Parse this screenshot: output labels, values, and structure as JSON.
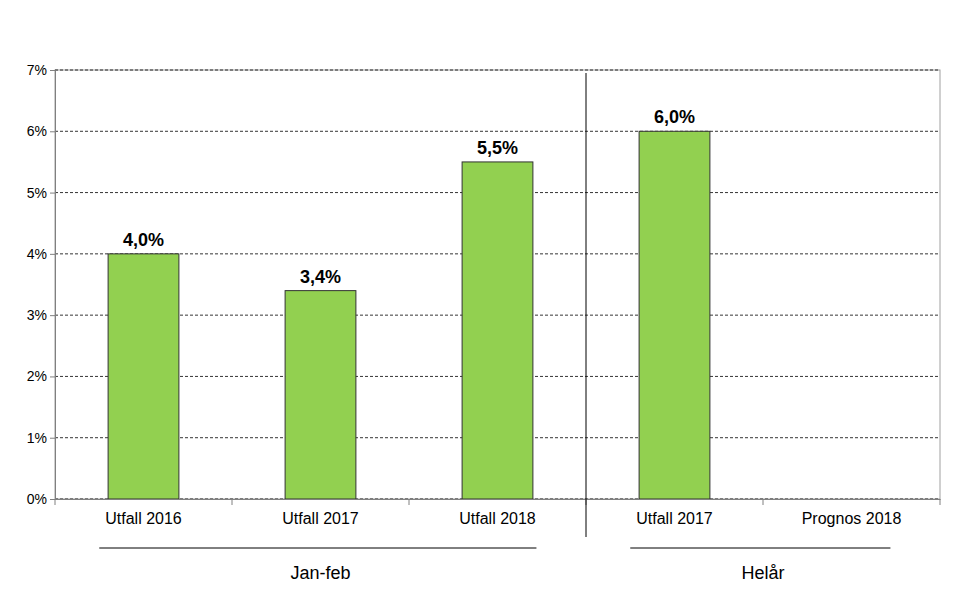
{
  "chart_data": {
    "type": "bar",
    "categories": [
      "Utfall 2016",
      "Utfall 2017",
      "Utfall 2018",
      "Utfall 2017",
      "Prognos 2018"
    ],
    "values": [
      4.0,
      3.4,
      5.5,
      6.0,
      null
    ],
    "value_labels": [
      "4,0%",
      "3,4%",
      "5,5%",
      "6,0%",
      null
    ],
    "groups": [
      {
        "name": "Jan-feb",
        "size": 3
      },
      {
        "name": "Helår",
        "size": 2
      }
    ],
    "color": "#92d050",
    "ylim": [
      0,
      7
    ],
    "yticks": [
      {
        "value": 0,
        "label": "0%"
      },
      {
        "value": 1,
        "label": "1%"
      },
      {
        "value": 2,
        "label": "2%"
      },
      {
        "value": 3,
        "label": "3%"
      },
      {
        "value": 4,
        "label": "4%"
      },
      {
        "value": 5,
        "label": "5%"
      },
      {
        "value": 6,
        "label": "6%"
      },
      {
        "value": 7,
        "label": "7%"
      }
    ],
    "grid": true,
    "data_labels": true
  }
}
